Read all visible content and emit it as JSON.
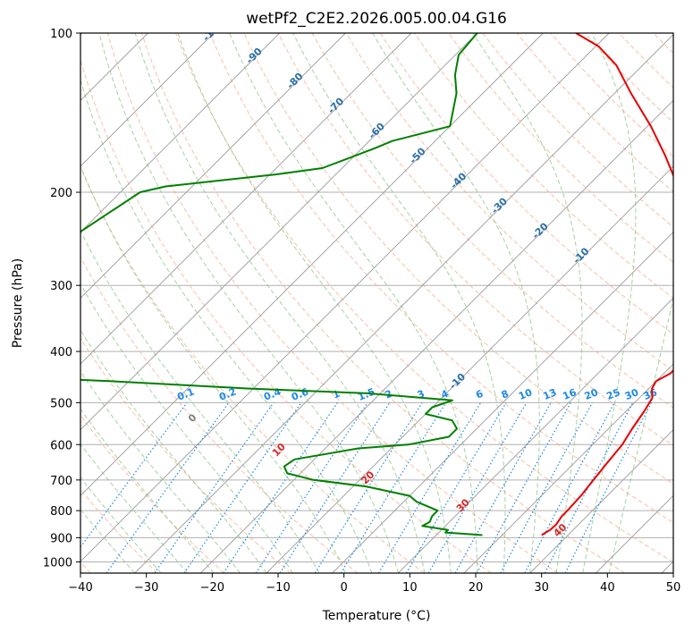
{
  "chart_data": {
    "type": "skew-t",
    "title": "wetPf2_C2E2.2026.005.00.04.G16",
    "xlabel": "Temperature (°C)",
    "ylabel": "Pressure (hPa)",
    "xlim": [
      -40,
      50
    ],
    "ylim": [
      1050,
      100
    ],
    "x_ticks": [
      -40,
      -30,
      -20,
      -10,
      0,
      10,
      20,
      30,
      40,
      50
    ],
    "x_tick_labels": [
      "−40",
      "−30",
      "−20",
      "−10",
      "0",
      "10",
      "20",
      "30",
      "40",
      "50"
    ],
    "y_ticks": [
      100,
      200,
      300,
      400,
      500,
      600,
      700,
      800,
      900,
      1000
    ],
    "y_tick_labels": [
      "100",
      "200",
      "300",
      "400",
      "500",
      "600",
      "700",
      "800",
      "900",
      "1000"
    ],
    "isotherms_C": [
      -120,
      -110,
      -100,
      -90,
      -80,
      -70,
      -60,
      -50,
      -40,
      -30,
      -20,
      -10,
      0,
      10,
      20,
      30,
      40,
      50
    ],
    "isotherm_labels": [
      {
        "t": -100,
        "text": "-100"
      },
      {
        "t": -90,
        "text": "-90"
      },
      {
        "t": -80,
        "text": "-80"
      },
      {
        "t": -70,
        "text": "-70"
      },
      {
        "t": -60,
        "text": "-60"
      },
      {
        "t": -50,
        "text": "-50"
      },
      {
        "t": -40,
        "text": "-40"
      },
      {
        "t": -30,
        "text": "-30"
      },
      {
        "t": -20,
        "text": "-20"
      },
      {
        "t": -10,
        "text": "-10"
      },
      {
        "t": 0,
        "text": "0"
      },
      {
        "t": 10,
        "text": "10"
      },
      {
        "t": 20,
        "text": "20"
      },
      {
        "t": 30,
        "text": "30"
      },
      {
        "t": 40,
        "text": "40"
      }
    ],
    "mixing_ratios_gkg": [
      0.1,
      0.2,
      0.4,
      0.6,
      1,
      1.5,
      2,
      3,
      4,
      6,
      8,
      10,
      13,
      16,
      20,
      25,
      30,
      36
    ],
    "mixing_ratio_labels": [
      "0.1",
      "0.2",
      "0.4",
      "0.6",
      "1",
      "1.5",
      "2",
      "3",
      "4",
      "6",
      "8",
      "10",
      "13",
      "16",
      "20",
      "25",
      "30",
      "36"
    ],
    "temperature_profile": {
      "name": "Temperature",
      "color": "#e60000",
      "points": [
        [
          890,
          26
        ],
        [
          870,
          26.5
        ],
        [
          850,
          26.6
        ],
        [
          820,
          26.2
        ],
        [
          800,
          26.2
        ],
        [
          750,
          26.0
        ],
        [
          700,
          25.5
        ],
        [
          650,
          25.0
        ],
        [
          600,
          24.5
        ],
        [
          560,
          23.6
        ],
        [
          520,
          22.8
        ],
        [
          490,
          22.0
        ],
        [
          470,
          20.5
        ],
        [
          455,
          20.0
        ],
        [
          440,
          21.0
        ],
        [
          420,
          21.0
        ],
        [
          400,
          20.5
        ],
        [
          385,
          20.0
        ],
        [
          370,
          20.0
        ],
        [
          350,
          18.3
        ],
        [
          330,
          16.0
        ],
        [
          300,
          12.0
        ],
        [
          250,
          4.0
        ],
        [
          200,
          -5.0
        ],
        [
          170,
          -13.0
        ],
        [
          150,
          -19.5
        ],
        [
          130,
          -27.5
        ],
        [
          115,
          -34.0
        ],
        [
          106,
          -39.5
        ],
        [
          100,
          -45.0
        ]
      ]
    },
    "dewpoint_profile": {
      "name": "Dewpoint",
      "color": "#008000",
      "points": [
        [
          890,
          17
        ],
        [
          880,
          11
        ],
        [
          870,
          11
        ],
        [
          855,
          6.5
        ],
        [
          840,
          7
        ],
        [
          820,
          6.5
        ],
        [
          800,
          6.5
        ],
        [
          770,
          2
        ],
        [
          750,
          0
        ],
        [
          720,
          -8
        ],
        [
          700,
          -17
        ],
        [
          680,
          -22
        ],
        [
          660,
          -23.5
        ],
        [
          640,
          -23
        ],
        [
          625,
          -19
        ],
        [
          610,
          -15
        ],
        [
          600,
          -8
        ],
        [
          580,
          -3
        ],
        [
          560,
          -3
        ],
        [
          540,
          -5
        ],
        [
          525,
          -10
        ],
        [
          510,
          -10
        ],
        [
          495,
          -8
        ],
        [
          480,
          -22
        ],
        [
          470,
          -41
        ],
        [
          455,
          -63
        ],
        [
          440,
          -93
        ],
        [
          425,
          -95
        ],
        [
          410,
          -95
        ],
        [
          400,
          -93
        ],
        [
          280,
          -91
        ],
        [
          250,
          -91
        ],
        [
          200,
          -87
        ],
        [
          195,
          -84
        ],
        [
          185,
          -69
        ],
        [
          180,
          -63
        ],
        [
          165,
          -58
        ],
        [
          160,
          -56.5
        ],
        [
          150,
          -50
        ],
        [
          130,
          -54
        ],
        [
          120,
          -57
        ],
        [
          110,
          -59.5
        ],
        [
          100,
          -60
        ]
      ]
    },
    "colors": {
      "dry_adiabat": "#f4a582",
      "moist_adiabat": "#7fbf7b",
      "mixing_ratio": "#1e88e5",
      "isotherm_label": "#2a6fa8",
      "grid": "#b0b0b0",
      "dry_adiabat_label": "#d62728",
      "axis": "#000000"
    },
    "dry_adiabat_labels": [
      {
        "t": 0,
        "text": "0"
      },
      {
        "t": 10,
        "text": "10"
      },
      {
        "t": 20,
        "text": "20"
      },
      {
        "t": 30,
        "text": "30"
      },
      {
        "t": 40,
        "text": "40"
      }
    ]
  }
}
